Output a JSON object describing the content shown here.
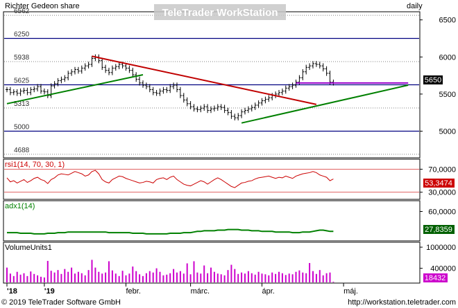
{
  "app": {
    "watermark": "TeleTrader WorkStation"
  },
  "header": {
    "title": "Richter Gedeon share",
    "period": "daily"
  },
  "footer": {
    "copyright": "© 2019 TeleTrader Software GmbH",
    "url": "http://workstation.teletrader.com"
  },
  "colors": {
    "price": "#000000",
    "level_blue": "#000080",
    "level_gray": "#808080",
    "trend_red": "#c00000",
    "trend_green": "#008000",
    "resistance_purple": "#9900cc",
    "rsi": "#cc0000",
    "adx": "#008000",
    "volume": "#cc00cc",
    "grid": "#999999"
  },
  "chart_data": [
    {
      "type": "line",
      "name": "price",
      "title": "Richter Gedeon share",
      "ylim": [
        4650,
        6600
      ],
      "yticks": [
        5000,
        5500,
        6000,
        6500
      ],
      "levels": [
        {
          "value": 6562,
          "label": "6562",
          "style": "dotted"
        },
        {
          "value": 6250,
          "label": "6250",
          "style": "solid"
        },
        {
          "value": 5938,
          "label": "5938",
          "style": "dotted"
        },
        {
          "value": 5625,
          "label": "5625",
          "style": "solid"
        },
        {
          "value": 5313,
          "label": "5313",
          "style": "dotted"
        },
        {
          "value": 5000,
          "label": "5000",
          "style": "solid"
        },
        {
          "value": 4688,
          "label": "4688",
          "style": "dotted"
        }
      ],
      "last_value": "5650",
      "x_labels": [
        {
          "label": "'18",
          "index": 0
        },
        {
          "label": "'19",
          "index": 11
        },
        {
          "label": "febr.",
          "index": 35
        },
        {
          "label": "márc.",
          "index": 54
        },
        {
          "label": "ápr.",
          "index": 75
        },
        {
          "label": "máj.",
          "index": 99
        }
      ],
      "closes": [
        5560,
        5520,
        5530,
        5510,
        5540,
        5550,
        5520,
        5560,
        5570,
        5600,
        5540,
        5530,
        5480,
        5610,
        5640,
        5680,
        5700,
        5720,
        5780,
        5800,
        5830,
        5810,
        5850,
        5880,
        5900,
        5980,
        6000,
        5950,
        5860,
        5820,
        5790,
        5850,
        5870,
        5900,
        5880,
        5850,
        5820,
        5760,
        5700,
        5650,
        5620,
        5600,
        5560,
        5520,
        5510,
        5540,
        5560,
        5550,
        5600,
        5620,
        5560,
        5480,
        5420,
        5370,
        5330,
        5300,
        5290,
        5310,
        5330,
        5280,
        5300,
        5310,
        5330,
        5320,
        5280,
        5250,
        5200,
        5180,
        5210,
        5260,
        5280,
        5300,
        5320,
        5350,
        5380,
        5410,
        5430,
        5450,
        5480,
        5500,
        5520,
        5540,
        5580,
        5600,
        5620,
        5660,
        5720,
        5800,
        5860,
        5880,
        5910,
        5900,
        5880,
        5840,
        5780,
        5660,
        5650
      ],
      "trendlines": [
        {
          "color": "red",
          "from": [
            25,
            6010
          ],
          "to": [
            91,
            5360
          ]
        },
        {
          "color": "green",
          "from": [
            0,
            5370
          ],
          "to": [
            40,
            5760
          ]
        },
        {
          "color": "green",
          "from": [
            69,
            5110
          ],
          "to": [
            118,
            5620
          ]
        },
        {
          "color": "purple",
          "from": [
            85,
            5650
          ],
          "to": [
            118,
            5650
          ]
        }
      ]
    },
    {
      "type": "line",
      "name": "rsi1(14, 70, 30, 1)",
      "ylim": [
        20,
        85
      ],
      "yticks": [
        30,
        70
      ],
      "yticks_labels": [
        "30,0000",
        "70,0000"
      ],
      "levels": [
        70,
        30
      ],
      "last_value": "53,3474",
      "values": [
        55,
        48,
        50,
        46,
        49,
        52,
        47,
        50,
        54,
        56,
        52,
        50,
        45,
        52,
        55,
        60,
        62,
        61,
        60,
        63,
        66,
        64,
        62,
        58,
        60,
        66,
        68,
        62,
        52,
        48,
        46,
        52,
        55,
        58,
        57,
        54,
        52,
        50,
        48,
        46,
        47,
        49,
        48,
        46,
        52,
        54,
        55,
        52,
        56,
        58,
        52,
        48,
        44,
        42,
        41,
        44,
        47,
        50,
        48,
        44,
        48,
        52,
        55,
        52,
        48,
        44,
        40,
        38,
        42,
        46,
        47,
        49,
        50,
        53,
        55,
        56,
        57,
        58,
        56,
        54,
        56,
        55,
        58,
        56,
        54,
        58,
        60,
        62,
        63,
        64,
        66,
        64,
        60,
        58,
        56,
        50,
        53
      ]
    },
    {
      "type": "line",
      "name": "adx1(14)",
      "ylim": [
        15,
        75
      ],
      "yticks": [
        60
      ],
      "yticks_labels": [
        "60,0000"
      ],
      "last_value": "27,8359",
      "values": [
        26,
        26,
        26,
        26,
        25,
        25,
        25,
        25,
        24,
        24,
        24,
        24,
        25,
        25,
        25,
        26,
        26,
        26,
        27,
        27,
        27,
        27,
        27,
        27,
        27,
        27,
        27,
        27,
        27,
        27,
        26,
        26,
        26,
        26,
        26,
        26,
        26,
        25,
        25,
        25,
        25,
        24,
        24,
        24,
        24,
        24,
        24,
        24,
        25,
        25,
        25,
        25,
        26,
        26,
        26,
        27,
        28,
        28,
        29,
        29,
        29,
        29,
        30,
        30,
        30,
        31,
        31,
        31,
        31,
        30,
        30,
        30,
        29,
        29,
        29,
        28,
        28,
        28,
        28,
        27,
        27,
        27,
        27,
        27,
        26,
        26,
        26,
        27,
        27,
        27,
        28,
        29,
        30,
        30,
        29,
        28,
        28
      ]
    },
    {
      "type": "bar",
      "name": "VolumeUnits1",
      "ylim": [
        0,
        1100000
      ],
      "yticks": [
        400000,
        1000000
      ],
      "yticks_labels": [
        "400000",
        "1000000"
      ],
      "last_value": "18432",
      "values": [
        420000,
        250000,
        180000,
        300000,
        220000,
        260000,
        180000,
        310000,
        240000,
        200000,
        160000,
        140000,
        610000,
        330000,
        280000,
        350000,
        240000,
        380000,
        300000,
        420000,
        250000,
        300000,
        260000,
        200000,
        350000,
        640000,
        420000,
        300000,
        250000,
        280000,
        600000,
        340000,
        250000,
        180000,
        330000,
        200000,
        250000,
        450000,
        320000,
        230000,
        180000,
        260000,
        320000,
        280000,
        400000,
        300000,
        200000,
        220000,
        260000,
        380000,
        280000,
        320000,
        250000,
        540000,
        230000,
        600000,
        280000,
        250000,
        480000,
        260000,
        420000,
        300000,
        250000,
        230000,
        200000,
        350000,
        500000,
        380000,
        240000,
        280000,
        250000,
        320000,
        260000,
        220000,
        300000,
        250000,
        230000,
        200000,
        280000,
        240000,
        300000,
        260000,
        210000,
        250000,
        230000,
        300000,
        340000,
        280000,
        260000,
        550000,
        320000,
        240000,
        350000,
        200000,
        260000,
        280000,
        18432
      ]
    }
  ]
}
